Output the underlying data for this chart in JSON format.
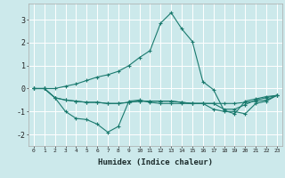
{
  "xlabel": "Humidex (Indice chaleur)",
  "bg_color": "#cce9eb",
  "grid_color": "#ffffff",
  "line_color": "#1a7a6e",
  "x_values": [
    0,
    1,
    2,
    3,
    4,
    5,
    6,
    7,
    8,
    9,
    10,
    11,
    12,
    13,
    14,
    15,
    16,
    17,
    18,
    19,
    20,
    21,
    22,
    23
  ],
  "line1_y": [
    0.0,
    0.0,
    0.0,
    0.1,
    0.2,
    0.35,
    0.5,
    0.6,
    0.75,
    1.0,
    1.35,
    1.65,
    2.85,
    3.3,
    2.6,
    2.05,
    0.3,
    -0.05,
    -0.95,
    -1.1,
    -0.55,
    -0.45,
    -0.35,
    -0.3
  ],
  "line2_y": [
    0.0,
    0.0,
    -0.4,
    -1.0,
    -1.3,
    -1.35,
    -1.55,
    -1.9,
    -1.65,
    -0.55,
    -0.5,
    -0.6,
    -0.65,
    -0.65,
    -0.65,
    -0.65,
    -0.65,
    -0.9,
    -1.0,
    -1.0,
    -1.1,
    -0.65,
    -0.55,
    -0.3
  ],
  "line3_y": [
    0.0,
    0.0,
    -0.4,
    -0.5,
    -0.55,
    -0.6,
    -0.6,
    -0.65,
    -0.65,
    -0.6,
    -0.55,
    -0.55,
    -0.55,
    -0.55,
    -0.6,
    -0.65,
    -0.65,
    -0.65,
    -0.65,
    -0.65,
    -0.6,
    -0.55,
    -0.5,
    -0.3
  ],
  "line4_y": [
    0.0,
    0.0,
    -0.4,
    -0.5,
    -0.55,
    -0.6,
    -0.6,
    -0.65,
    -0.65,
    -0.6,
    -0.55,
    -0.55,
    -0.55,
    -0.55,
    -0.6,
    -0.65,
    -0.65,
    -0.65,
    -0.9,
    -0.9,
    -0.7,
    -0.5,
    -0.4,
    -0.3
  ],
  "ylim": [
    -2.5,
    3.7
  ],
  "yticks": [
    -2,
    -1,
    0,
    1,
    2,
    3
  ],
  "xticks": [
    0,
    1,
    2,
    3,
    4,
    5,
    6,
    7,
    8,
    9,
    10,
    11,
    12,
    13,
    14,
    15,
    16,
    17,
    18,
    19,
    20,
    21,
    22,
    23
  ]
}
